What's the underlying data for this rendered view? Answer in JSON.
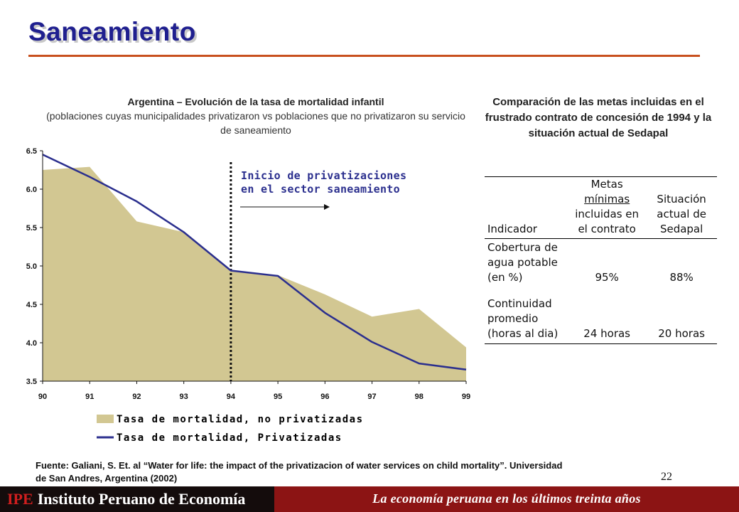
{
  "slide": {
    "title": "Saneamiento",
    "page_number": "22"
  },
  "chart_data": {
    "type": "area",
    "title": "Argentina – Evolución de la tasa de mortalidad infantil",
    "subtitle": "(poblaciones cuyas municipalidades privatizaron vs poblaciones que no privatizaron su servicio de saneamiento",
    "xlabel": "",
    "ylabel": "",
    "x": [
      "90",
      "91",
      "92",
      "93",
      "94",
      "95",
      "96",
      "97",
      "98",
      "99"
    ],
    "yticks": [
      "6.5",
      "6.0",
      "5.5",
      "5.0",
      "4.5",
      "4.0",
      "3.5"
    ],
    "ylim": [
      3.5,
      6.5
    ],
    "grid": false,
    "legend_position": "bottom",
    "series": [
      {
        "name": "Tasa de mortalidad, no privatizadas",
        "mark": "area",
        "color": "#d2c792",
        "values": [
          6.25,
          6.29,
          5.58,
          5.44,
          4.94,
          4.88,
          4.63,
          4.34,
          4.44,
          3.94
        ]
      },
      {
        "name": "Tasa de mortalidad, Privatizadas",
        "mark": "line",
        "color": "#2b2f8e",
        "values": [
          6.45,
          6.16,
          5.84,
          5.44,
          4.94,
          4.87,
          4.39,
          4.01,
          3.73,
          3.65
        ]
      }
    ],
    "annotation": {
      "lines": [
        "Inicio de privatizaciones",
        "en el sector saneamiento"
      ],
      "at_x": "94"
    }
  },
  "comparison": {
    "title": "Comparación de las metas incluidas en el frustrado contrato de concesión de 1994 y la situación actual de Sedapal",
    "headers": {
      "indicator": "Indicador",
      "goals": [
        "Metas",
        "mínimas",
        "incluidas en",
        "el contrato"
      ],
      "current": [
        "Situación",
        "actual de",
        "Sedapal"
      ]
    },
    "rows": [
      {
        "indicator": [
          "Cobertura de",
          "agua potable",
          "(en %)"
        ],
        "goal": "95%",
        "current": "88%"
      },
      {
        "indicator": [
          "Continuidad",
          "promedio",
          "(horas al dia)"
        ],
        "goal": "24 horas",
        "current": "20 horas"
      }
    ]
  },
  "source": "Fuente: Galiani,  S. Et. al “Water for life: the impact of the privatizacion of water services on child mortality”. Universidad de San Andres, Argentina (2002)",
  "footer": {
    "brand_abbr": "IPE",
    "brand_name": "Instituto Peruano de Economía",
    "tagline": "La economía peruana en los últimos treinta años"
  },
  "colors": {
    "title": "#1f1f8f",
    "title_rule": "#c8501e",
    "footer_left": "#140c0c",
    "footer_right": "#8c1414"
  }
}
